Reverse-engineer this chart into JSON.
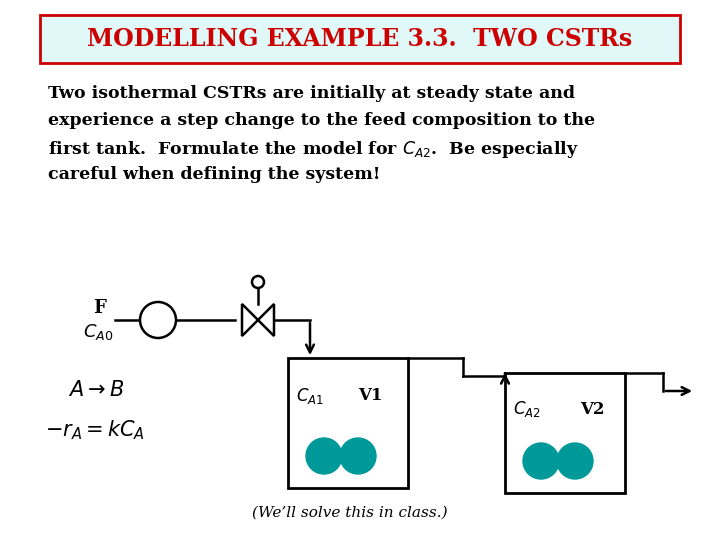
{
  "title": "MODELLING EXAMPLE 3.3.  TWO CSTRs",
  "title_color": "#cc0000",
  "title_bg": "#e0f8f8",
  "title_border": "#cc0000",
  "bg_color": "#ffffff",
  "body_text_lines": [
    "Two isothermal CSTRs are initially at steady state and",
    "experience a step change to the feed composition to the",
    "first tank.  Formulate the model for $C_{A2}$.  Be especially",
    "careful when defining the system!"
  ],
  "eq1": "$A \\rightarrow B$",
  "eq2": "$-r_A = kC_A$",
  "note": "(We’ll solve this in class.)",
  "tank1_label_c": "$C_{A1}$",
  "tank1_label_v": "V1",
  "tank2_label_c": "$C_{A2}$",
  "tank2_label_v": "V2",
  "feed_label_f": "F",
  "feed_label_c": "$C_{A0}$",
  "teal_color": "#009999"
}
